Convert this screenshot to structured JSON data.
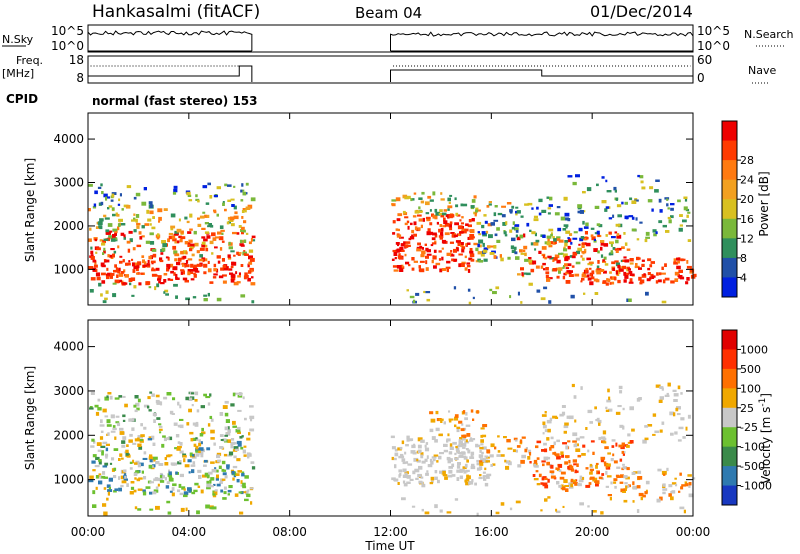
{
  "header": {
    "station": "Hankasalmi (fitACF)",
    "beam": "Beam 04",
    "date": "01/Dec/2014"
  },
  "nsky_panel": {
    "left_label": "N.Sky",
    "left_ticks": [
      "10^5",
      "10^0"
    ],
    "right_label": "N.Search",
    "right_ticks": [
      "10^5",
      "10^0"
    ]
  },
  "freq_panel": {
    "left_label_1": "Freq.",
    "left_label_2": "[MHz]",
    "left_ticks": [
      "18",
      "8"
    ],
    "right_label": "Nave",
    "right_ticks": [
      "60",
      "0"
    ]
  },
  "cpid": {
    "label": "CPID",
    "mode": "normal (fast stereo) 153"
  },
  "chart_data": [
    {
      "type": "heatmap",
      "title": "",
      "xlabel": "Time UT",
      "ylabel": "Slant Range [km]",
      "x_ticks": [
        "00:00",
        "04:00",
        "08:00",
        "12:00",
        "16:00",
        "20:00",
        "00:00"
      ],
      "xlim_hours": [
        0,
        24
      ],
      "y_ticks": [
        "1000",
        "2000",
        "3000",
        "4000"
      ],
      "ylim_km": [
        180,
        4600
      ],
      "data_gaps_hours": [
        [
          6.5,
          12.0
        ]
      ],
      "colorbar": {
        "label": "Power [dB]",
        "ticks": [
          "4",
          "8",
          "12",
          "16",
          "20",
          "24",
          "28"
        ],
        "colors": [
          "#0020e0",
          "#2050a8",
          "#2f8f5c",
          "#7ab83a",
          "#d8c020",
          "#f2a020",
          "#ff7a10",
          "#ff3a00",
          "#ee0000"
        ]
      }
    },
    {
      "type": "heatmap",
      "title": "",
      "xlabel": "Time UT",
      "ylabel": "Slant Range [km]",
      "x_ticks": [
        "00:00",
        "04:00",
        "08:00",
        "12:00",
        "16:00",
        "20:00",
        "00:00"
      ],
      "xlim_hours": [
        0,
        24
      ],
      "y_ticks": [
        "1000",
        "2000",
        "3000",
        "4000"
      ],
      "ylim_km": [
        180,
        4600
      ],
      "data_gaps_hours": [
        [
          6.5,
          12.0
        ]
      ],
      "colorbar": {
        "label": "Velocity [m s",
        "label_sup": "-1",
        "label_end": "]",
        "ticks": [
          "1000",
          "500",
          "100",
          "25",
          "-25",
          "-100",
          "-500",
          "-1000"
        ],
        "colors": [
          "#1838c0",
          "#2f7ab0",
          "#3a8a4a",
          "#6cc030",
          "#c8c8c8",
          "#f0a800",
          "#ff7000",
          "#ff3000",
          "#e00000"
        ]
      }
    }
  ]
}
